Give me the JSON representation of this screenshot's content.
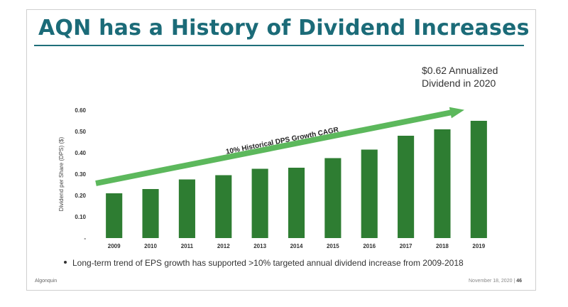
{
  "slide": {
    "title": "AQN has a History of Dividend Increases",
    "callout_line1": "$0.62 Annualized",
    "callout_line2": "Dividend in 2020",
    "bullet": "Long-term trend of EPS growth has supported >10% targeted annual dividend increase from 2009-2018",
    "footer_left": "Algonquin",
    "footer_date": "November 18, 2020",
    "footer_sep": " | ",
    "footer_page": "46",
    "colors": {
      "title": "#1b6b78",
      "bar": "#2e7d32",
      "arrow": "#5cb85c"
    }
  },
  "chart_data": {
    "type": "bar",
    "categories": [
      "2009",
      "2010",
      "2011",
      "2012",
      "2013",
      "2014",
      "2015",
      "2016",
      "2017",
      "2018",
      "2019"
    ],
    "values": [
      0.21,
      0.23,
      0.275,
      0.295,
      0.325,
      0.33,
      0.375,
      0.415,
      0.48,
      0.51,
      0.55
    ],
    "ylabel": "Dividend per Share (DPS) ($)",
    "ylim": [
      0,
      0.6
    ],
    "yticks": [
      0,
      0.1,
      0.2,
      0.3,
      0.4,
      0.5,
      0.6
    ],
    "ytick_labels": [
      "-",
      "0.10",
      "0.20",
      "0.30",
      "0.40",
      "0.50",
      "0.60"
    ],
    "annotation": "10% Historical DPS Growth CAGR",
    "grid": false
  }
}
